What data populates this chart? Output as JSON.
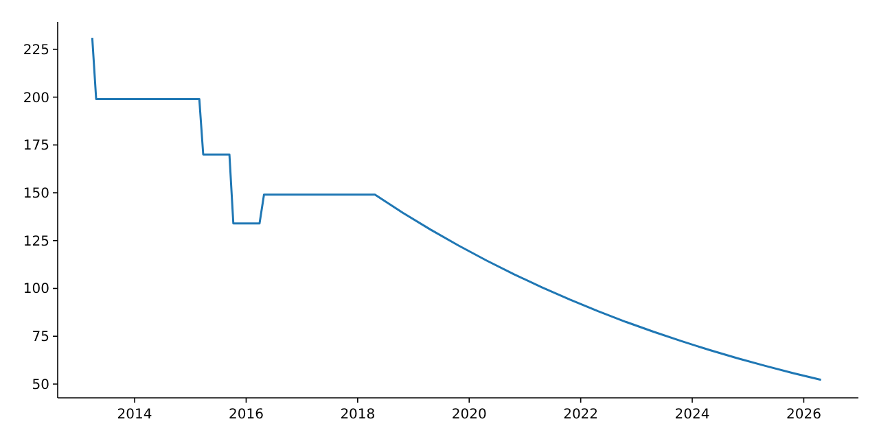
{
  "chart_data": {
    "type": "line",
    "x": [
      2013.24,
      2013.31,
      2015.16,
      2015.23,
      2015.7,
      2015.77,
      2016.24,
      2016.32,
      2018.31,
      2018.81,
      2019.31,
      2019.81,
      2020.31,
      2020.81,
      2021.31,
      2021.81,
      2022.31,
      2022.81,
      2023.31,
      2023.81,
      2024.31,
      2024.81,
      2025.31,
      2025.81,
      2026.31
    ],
    "series": [
      {
        "color": "#1f77b4",
        "values": [
          231,
          199,
          199,
          170,
          170,
          134,
          134,
          149,
          149,
          139.5,
          130.7,
          122.4,
          114.6,
          107.3,
          100.5,
          94.1,
          88.1,
          82.5,
          77.3,
          72.4,
          67.8,
          63.5,
          59.5,
          55.7,
          52.2
        ]
      }
    ],
    "xlim": [
      2012.62,
      2026.98
    ],
    "xticks": [
      2014,
      2016,
      2018,
      2020,
      2022,
      2024,
      2026
    ],
    "ylim": [
      42.8,
      239.3
    ],
    "yticks": [
      50,
      75,
      100,
      125,
      150,
      175,
      200,
      225
    ],
    "grid": false
  }
}
